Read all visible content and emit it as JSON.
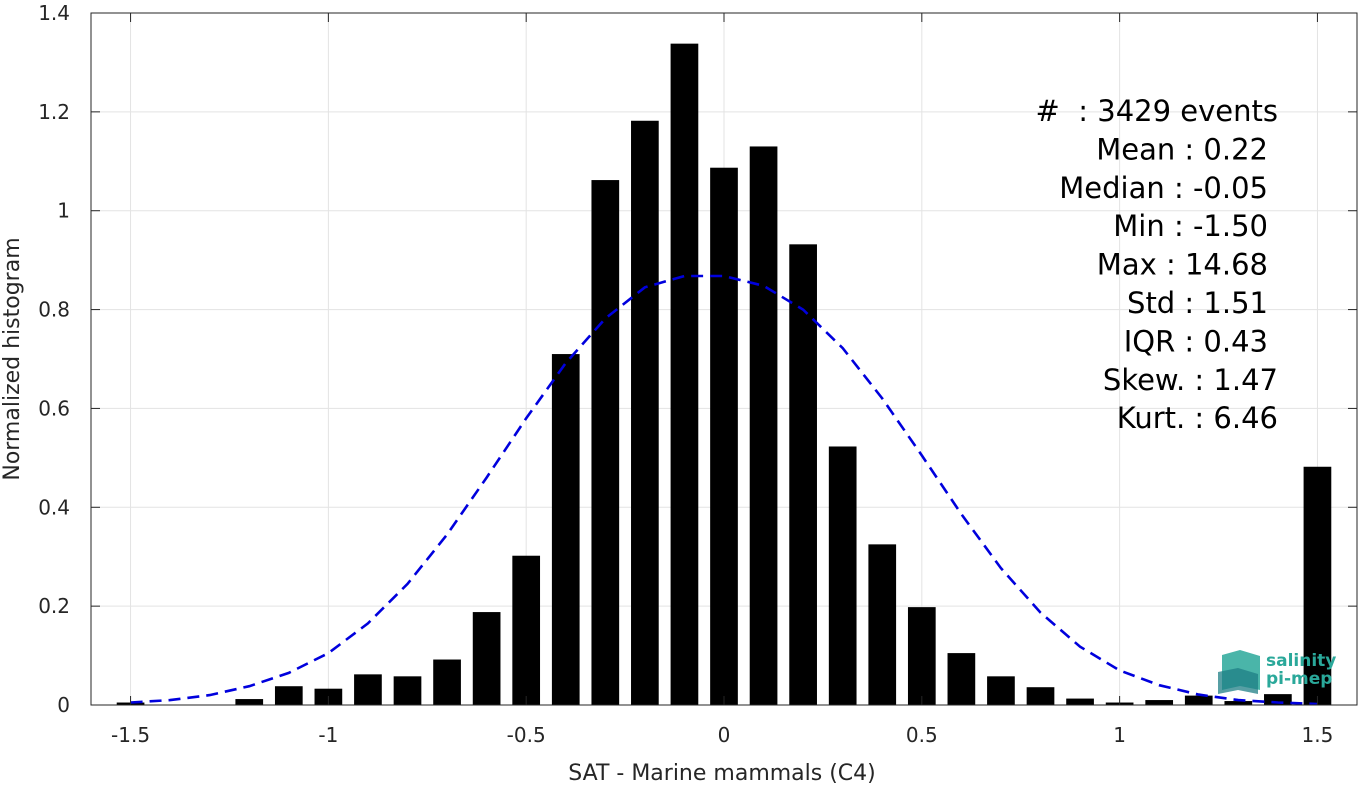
{
  "chart_data": {
    "type": "bar",
    "xlabel": "SAT - Marine mammals (C4)",
    "ylabel": "Normalized histogram",
    "xlim": [
      -1.6,
      1.6
    ],
    "ylim": [
      0,
      1.4
    ],
    "xticks": [
      -1.5,
      -1,
      -0.5,
      0,
      0.5,
      1,
      1.5
    ],
    "xtick_labels": [
      "-1.5",
      "-1",
      "-0.5",
      "0",
      "0.5",
      "1",
      "1.5"
    ],
    "yticks": [
      0,
      0.2,
      0.4,
      0.6,
      0.8,
      1,
      1.2,
      1.4
    ],
    "ytick_labels": [
      "0",
      "0.2",
      "0.4",
      "0.6",
      "0.8",
      "1",
      "1.2",
      "1.4"
    ],
    "grid": true,
    "bar_color": "#000000",
    "bar_width": 0.07,
    "bins": [
      {
        "x": -1.5,
        "y": 0.005
      },
      {
        "x": -1.4,
        "y": 0.0
      },
      {
        "x": -1.3,
        "y": 0.0
      },
      {
        "x": -1.2,
        "y": 0.012
      },
      {
        "x": -1.1,
        "y": 0.038
      },
      {
        "x": -1.0,
        "y": 0.033
      },
      {
        "x": -0.9,
        "y": 0.062
      },
      {
        "x": -0.8,
        "y": 0.058
      },
      {
        "x": -0.7,
        "y": 0.092
      },
      {
        "x": -0.6,
        "y": 0.188
      },
      {
        "x": -0.5,
        "y": 0.302
      },
      {
        "x": -0.4,
        "y": 0.71
      },
      {
        "x": -0.3,
        "y": 1.062
      },
      {
        "x": -0.2,
        "y": 1.182
      },
      {
        "x": -0.1,
        "y": 1.338
      },
      {
        "x": 0.0,
        "y": 1.087
      },
      {
        "x": 0.1,
        "y": 1.13
      },
      {
        "x": 0.2,
        "y": 0.932
      },
      {
        "x": 0.3,
        "y": 0.523
      },
      {
        "x": 0.4,
        "y": 0.325
      },
      {
        "x": 0.5,
        "y": 0.198
      },
      {
        "x": 0.6,
        "y": 0.105
      },
      {
        "x": 0.7,
        "y": 0.058
      },
      {
        "x": 0.8,
        "y": 0.036
      },
      {
        "x": 0.9,
        "y": 0.013
      },
      {
        "x": 1.0,
        "y": 0.005
      },
      {
        "x": 1.1,
        "y": 0.01
      },
      {
        "x": 1.2,
        "y": 0.019
      },
      {
        "x": 1.3,
        "y": 0.008
      },
      {
        "x": 1.4,
        "y": 0.022
      },
      {
        "x": 1.5,
        "y": 0.482
      }
    ],
    "fit_curve": {
      "style": "dashed",
      "color": "#0000dd",
      "points": [
        [
          -1.5,
          0.005
        ],
        [
          -1.4,
          0.01
        ],
        [
          -1.3,
          0.02
        ],
        [
          -1.2,
          0.038
        ],
        [
          -1.1,
          0.065
        ],
        [
          -1.0,
          0.105
        ],
        [
          -0.9,
          0.165
        ],
        [
          -0.8,
          0.245
        ],
        [
          -0.7,
          0.345
        ],
        [
          -0.6,
          0.46
        ],
        [
          -0.5,
          0.58
        ],
        [
          -0.4,
          0.692
        ],
        [
          -0.3,
          0.782
        ],
        [
          -0.2,
          0.845
        ],
        [
          -0.1,
          0.868
        ],
        [
          0.0,
          0.868
        ],
        [
          0.1,
          0.848
        ],
        [
          0.2,
          0.8
        ],
        [
          0.3,
          0.722
        ],
        [
          0.4,
          0.62
        ],
        [
          0.5,
          0.505
        ],
        [
          0.6,
          0.386
        ],
        [
          0.7,
          0.277
        ],
        [
          0.8,
          0.187
        ],
        [
          0.9,
          0.118
        ],
        [
          1.0,
          0.07
        ],
        [
          1.1,
          0.04
        ],
        [
          1.2,
          0.021
        ],
        [
          1.3,
          0.01
        ],
        [
          1.4,
          0.005
        ],
        [
          1.5,
          0.002
        ]
      ]
    }
  },
  "stats": [
    {
      "label": "#",
      "value": "  : 3429 events"
    },
    {
      "label": "Mean",
      "value": " : 0.22"
    },
    {
      "label": "Median",
      "value": " : -0.05"
    },
    {
      "label": "Min",
      "value": " : -1.50"
    },
    {
      "label": "Max",
      "value": " : 14.68"
    },
    {
      "label": "Std",
      "value": " : 1.51"
    },
    {
      "label": "IQR",
      "value": " : 0.43"
    },
    {
      "label": "Skew.",
      "value": " : 1.47"
    },
    {
      "label": "Kurt.",
      "value": " : 6.46"
    }
  ],
  "logo": {
    "line1": "salinity",
    "line2": "pi-mep",
    "color": "#2aa89a"
  }
}
